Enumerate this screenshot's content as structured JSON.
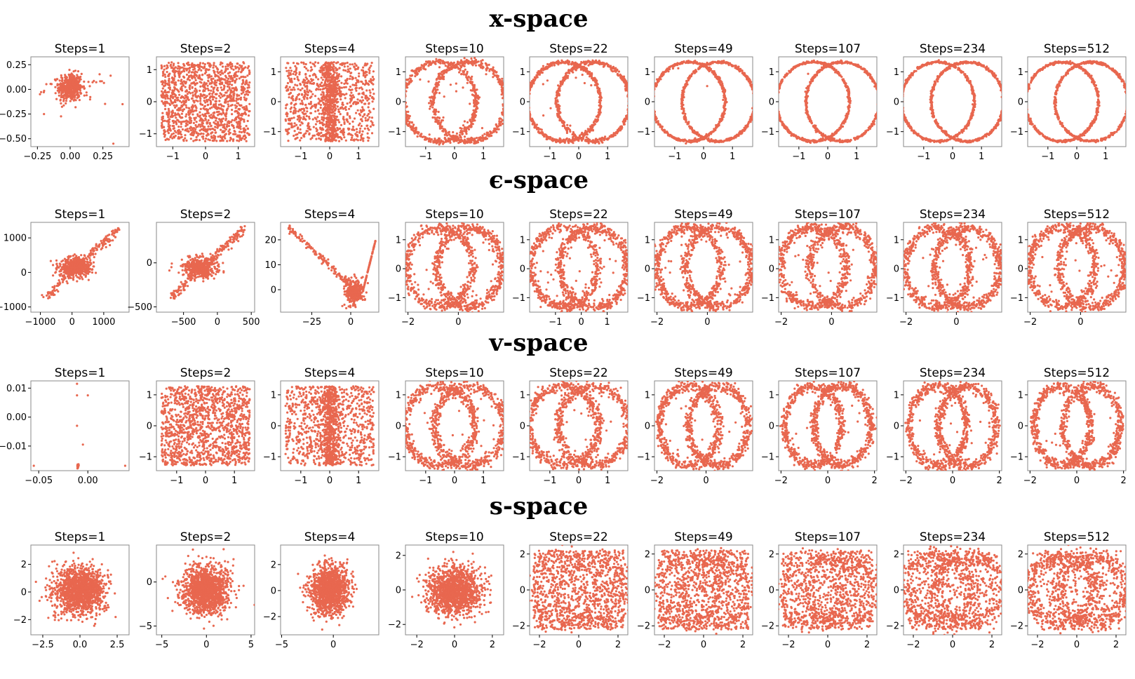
{
  "figure": {
    "point_color": "#e8674f",
    "row_titles": [
      "x-space",
      "ϵ-space",
      "v-space",
      "s-space"
    ]
  },
  "chart_data": [
    {
      "type": "scatter",
      "row": "x-space",
      "title": "Steps=1",
      "shape": "blob",
      "xlim": [
        -0.3,
        0.45
      ],
      "ylim": [
        -0.58,
        0.33
      ],
      "xticks": [
        -0.25,
        0.0,
        0.25
      ],
      "xtick_labels": [
        "−0.25",
        "0.00",
        "0.25"
      ],
      "yticks": [
        0.25,
        0.0,
        -0.25,
        -0.5
      ],
      "ytick_labels": [
        "0.25",
        "0.00",
        "−0.25",
        "−0.50"
      ]
    },
    {
      "type": "scatter",
      "row": "x-space",
      "title": "Steps=2",
      "shape": "noise",
      "xlim": [
        -1.5,
        1.5
      ],
      "ylim": [
        -1.4,
        1.4
      ],
      "xticks": [
        -1,
        0,
        1
      ],
      "xtick_labels": [
        "−1",
        "0",
        "1"
      ],
      "yticks": [
        1,
        0,
        -1
      ],
      "ytick_labels": [
        "1",
        "0",
        "−1"
      ]
    },
    {
      "type": "scatter",
      "row": "x-space",
      "title": "Steps=4",
      "shape": "noise",
      "xlim": [
        -1.7,
        1.7
      ],
      "ylim": [
        -1.5,
        1.5
      ],
      "xticks": [
        -1,
        0,
        1
      ],
      "xtick_labels": [
        "−1",
        "0",
        "1"
      ],
      "yticks": [
        1,
        0,
        -1
      ],
      "ytick_labels": [
        "1",
        "0",
        "−1"
      ]
    },
    {
      "type": "scatter",
      "row": "x-space",
      "title": "Steps=10",
      "shape": "circles",
      "xlim": [
        -1.7,
        1.7
      ],
      "ylim": [
        -1.5,
        1.5
      ],
      "xticks": [
        -1,
        0,
        1
      ],
      "xtick_labels": [
        "−1",
        "0",
        "1"
      ],
      "yticks": [
        1,
        0,
        -1
      ],
      "ytick_labels": [
        "1",
        "0",
        "−1"
      ]
    },
    {
      "type": "scatter",
      "row": "x-space",
      "title": "Steps=22",
      "shape": "circles",
      "xlim": [
        -1.7,
        1.7
      ],
      "ylim": [
        -1.5,
        1.5
      ],
      "xticks": [
        -1,
        0,
        1
      ],
      "xtick_labels": [
        "−1",
        "0",
        "1"
      ],
      "yticks": [
        1,
        0,
        -1
      ],
      "ytick_labels": [
        "1",
        "0",
        "−1"
      ]
    },
    {
      "type": "scatter",
      "row": "x-space",
      "title": "Steps=49",
      "shape": "circles",
      "xlim": [
        -1.7,
        1.7
      ],
      "ylim": [
        -1.5,
        1.5
      ],
      "xticks": [
        -1,
        0,
        1
      ],
      "xtick_labels": [
        "−1",
        "0",
        "1"
      ],
      "yticks": [
        1,
        0,
        -1
      ],
      "ytick_labels": [
        "1",
        "0",
        "−1"
      ]
    },
    {
      "type": "scatter",
      "row": "x-space",
      "title": "Steps=107",
      "shape": "circles",
      "xlim": [
        -1.7,
        1.7
      ],
      "ylim": [
        -1.5,
        1.5
      ],
      "xticks": [
        -1,
        0,
        1
      ],
      "xtick_labels": [
        "−1",
        "0",
        "1"
      ],
      "yticks": [
        1,
        0,
        -1
      ],
      "ytick_labels": [
        "1",
        "0",
        "−1"
      ]
    },
    {
      "type": "scatter",
      "row": "x-space",
      "title": "Steps=234",
      "shape": "circles",
      "xlim": [
        -1.7,
        1.7
      ],
      "ylim": [
        -1.5,
        1.5
      ],
      "xticks": [
        -1,
        0,
        1
      ],
      "xtick_labels": [
        "−1",
        "0",
        "1"
      ],
      "yticks": [
        1,
        0,
        -1
      ],
      "ytick_labels": [
        "1",
        "0",
        "−1"
      ]
    },
    {
      "type": "scatter",
      "row": "x-space",
      "title": "Steps=512",
      "shape": "circles",
      "xlim": [
        -1.7,
        1.7
      ],
      "ylim": [
        -1.5,
        1.5
      ],
      "xticks": [
        -1,
        0,
        1
      ],
      "xtick_labels": [
        "−1",
        "0",
        "1"
      ],
      "yticks": [
        1,
        0,
        -1
      ],
      "ytick_labels": [
        "1",
        "0",
        "−1"
      ]
    },
    {
      "type": "scatter",
      "row": "ϵ-space",
      "title": "Steps=1",
      "shape": "explode",
      "xlim": [
        -1300,
        1800
      ],
      "ylim": [
        -1150,
        1450
      ],
      "xticks": [
        -1000,
        0,
        1000
      ],
      "xtick_labels": [
        "−1000",
        "0",
        "1000"
      ],
      "yticks": [
        1000,
        0,
        -1000
      ],
      "ytick_labels": [
        "1000",
        "0",
        "−1000"
      ]
    },
    {
      "type": "scatter",
      "row": "ϵ-space",
      "title": "Steps=2",
      "shape": "explode",
      "xlim": [
        -900,
        550
      ],
      "ylim": [
        -560,
        460
      ],
      "xticks": [
        -500,
        0,
        500
      ],
      "xtick_labels": [
        "−500",
        "0",
        "500"
      ],
      "yticks": [
        0,
        -500
      ],
      "ytick_labels": [
        "0",
        "−500"
      ]
    },
    {
      "type": "scatter",
      "row": "ϵ-space",
      "title": "Steps=4",
      "shape": "streaks",
      "xlim": [
        -45,
        18
      ],
      "ylim": [
        -9,
        27
      ],
      "xticks": [
        -25,
        0
      ],
      "xtick_labels": [
        "−25",
        "0"
      ],
      "yticks": [
        20,
        10,
        0
      ],
      "ytick_labels": [
        "20",
        "10",
        "0"
      ]
    },
    {
      "type": "scatter",
      "row": "ϵ-space",
      "title": "Steps=10",
      "shape": "circles",
      "xlim": [
        -2.1,
        1.8
      ],
      "ylim": [
        -1.5,
        1.6
      ],
      "xticks": [
        -2,
        0
      ],
      "xtick_labels": [
        "−2",
        "0"
      ],
      "yticks": [
        1,
        0,
        -1
      ],
      "ytick_labels": [
        "1",
        "0",
        "−1"
      ]
    },
    {
      "type": "scatter",
      "row": "ϵ-space",
      "title": "Steps=22",
      "shape": "circles",
      "xlim": [
        -2.0,
        1.8
      ],
      "ylim": [
        -1.5,
        1.6
      ],
      "xticks": [
        -1,
        0,
        1
      ],
      "xtick_labels": [
        "−1",
        "0",
        "1"
      ],
      "yticks": [
        1,
        0,
        -1
      ],
      "ytick_labels": [
        "1",
        "0",
        "−1"
      ]
    },
    {
      "type": "scatter",
      "row": "ϵ-space",
      "title": "Steps=49",
      "shape": "circles",
      "xlim": [
        -2.1,
        1.8
      ],
      "ylim": [
        -1.5,
        1.6
      ],
      "xticks": [
        -2,
        0
      ],
      "xtick_labels": [
        "−2",
        "0"
      ],
      "yticks": [
        1,
        0,
        -1
      ],
      "ytick_labels": [
        "1",
        "0",
        "−1"
      ]
    },
    {
      "type": "scatter",
      "row": "ϵ-space",
      "title": "Steps=107",
      "shape": "circles",
      "xlim": [
        -2.1,
        1.8
      ],
      "ylim": [
        -1.5,
        1.6
      ],
      "xticks": [
        -2,
        0
      ],
      "xtick_labels": [
        "−2",
        "0"
      ],
      "yticks": [
        1,
        0,
        -1
      ],
      "ytick_labels": [
        "1",
        "0",
        "−1"
      ]
    },
    {
      "type": "scatter",
      "row": "ϵ-space",
      "title": "Steps=234",
      "shape": "circles",
      "xlim": [
        -2.1,
        1.8
      ],
      "ylim": [
        -1.5,
        1.6
      ],
      "xticks": [
        -2,
        0
      ],
      "xtick_labels": [
        "−2",
        "0"
      ],
      "yticks": [
        1,
        0,
        -1
      ],
      "ytick_labels": [
        "1",
        "0",
        "−1"
      ]
    },
    {
      "type": "scatter",
      "row": "ϵ-space",
      "title": "Steps=512",
      "shape": "circles",
      "xlim": [
        -2.1,
        1.8
      ],
      "ylim": [
        -1.5,
        1.6
      ],
      "xticks": [
        -2,
        0
      ],
      "xtick_labels": [
        "−2",
        "0"
      ],
      "yticks": [
        1,
        0,
        -1
      ],
      "ytick_labels": [
        "1",
        "0",
        "−1"
      ]
    },
    {
      "type": "scatter",
      "row": "v-space",
      "title": "Steps=1",
      "shape": "sparse",
      "xlim": [
        -0.058,
        0.042
      ],
      "ylim": [
        -0.0185,
        0.0125
      ],
      "xticks": [
        -0.05,
        0.0
      ],
      "xtick_labels": [
        "−0.05",
        "0.00"
      ],
      "yticks": [
        0.01,
        0.0,
        -0.01
      ],
      "ytick_labels": [
        "0.01",
        "0.00",
        "−0.01"
      ]
    },
    {
      "type": "scatter",
      "row": "v-space",
      "title": "Steps=2",
      "shape": "noise",
      "xlim": [
        -1.7,
        1.7
      ],
      "ylim": [
        -1.45,
        1.45
      ],
      "xticks": [
        -1,
        0,
        1
      ],
      "xtick_labels": [
        "−1",
        "0",
        "1"
      ],
      "yticks": [
        1,
        0,
        -1
      ],
      "ytick_labels": [
        "1",
        "0",
        "−1"
      ]
    },
    {
      "type": "scatter",
      "row": "v-space",
      "title": "Steps=4",
      "shape": "noise",
      "xlim": [
        -1.7,
        1.7
      ],
      "ylim": [
        -1.45,
        1.45
      ],
      "xticks": [
        -1,
        0,
        1
      ],
      "xtick_labels": [
        "−1",
        "0",
        "1"
      ],
      "yticks": [
        1,
        0,
        -1
      ],
      "ytick_labels": [
        "1",
        "0",
        "−1"
      ]
    },
    {
      "type": "scatter",
      "row": "v-space",
      "title": "Steps=10",
      "shape": "circles",
      "xlim": [
        -1.7,
        1.7
      ],
      "ylim": [
        -1.45,
        1.45
      ],
      "xticks": [
        -1,
        0,
        1
      ],
      "xtick_labels": [
        "−1",
        "0",
        "1"
      ],
      "yticks": [
        1,
        0,
        -1
      ],
      "ytick_labels": [
        "1",
        "0",
        "−1"
      ]
    },
    {
      "type": "scatter",
      "row": "v-space",
      "title": "Steps=22",
      "shape": "circles",
      "xlim": [
        -1.7,
        1.7
      ],
      "ylim": [
        -1.45,
        1.45
      ],
      "xticks": [
        -1,
        0,
        1
      ],
      "xtick_labels": [
        "−1",
        "0",
        "1"
      ],
      "yticks": [
        1,
        0,
        -1
      ],
      "ytick_labels": [
        "1",
        "0",
        "−1"
      ]
    },
    {
      "type": "scatter",
      "row": "v-space",
      "title": "Steps=49",
      "shape": "circles",
      "xlim": [
        -2.1,
        1.9
      ],
      "ylim": [
        -1.45,
        1.45
      ],
      "xticks": [
        -2,
        0
      ],
      "xtick_labels": [
        "−2",
        "0"
      ],
      "yticks": [
        1,
        0,
        -1
      ],
      "ytick_labels": [
        "1",
        "0",
        "−1"
      ]
    },
    {
      "type": "scatter",
      "row": "v-space",
      "title": "Steps=107",
      "shape": "circles",
      "xlim": [
        -2.1,
        2.1
      ],
      "ylim": [
        -1.45,
        1.45
      ],
      "xticks": [
        -2,
        0,
        2
      ],
      "xtick_labels": [
        "−2",
        "0",
        "2"
      ],
      "yticks": [
        1,
        0,
        -1
      ],
      "ytick_labels": [
        "1",
        "0",
        "−1"
      ]
    },
    {
      "type": "scatter",
      "row": "v-space",
      "title": "Steps=234",
      "shape": "circles",
      "xlim": [
        -2.1,
        2.1
      ],
      "ylim": [
        -1.45,
        1.45
      ],
      "xticks": [
        -2,
        0,
        2
      ],
      "xtick_labels": [
        "−2",
        "0",
        "2"
      ],
      "yticks": [
        1,
        0,
        -1
      ],
      "ytick_labels": [
        "1",
        "0",
        "−1"
      ]
    },
    {
      "type": "scatter",
      "row": "v-space",
      "title": "Steps=512",
      "shape": "circles",
      "xlim": [
        -2.1,
        2.1
      ],
      "ylim": [
        -1.45,
        1.45
      ],
      "xticks": [
        -2,
        0,
        2
      ],
      "xtick_labels": [
        "−2",
        "0",
        "2"
      ],
      "yticks": [
        1,
        0,
        -1
      ],
      "ytick_labels": [
        "1",
        "0",
        "−1"
      ]
    },
    {
      "type": "scatter",
      "row": "s-space",
      "title": "Steps=1",
      "shape": "gauss",
      "xlim": [
        -3.3,
        3.3
      ],
      "ylim": [
        -3.1,
        3.4
      ],
      "xticks": [
        -2.5,
        0.0,
        2.5
      ],
      "xtick_labels": [
        "−2.5",
        "0.0",
        "2.5"
      ],
      "yticks": [
        2,
        0,
        -2
      ],
      "ytick_labels": [
        "2",
        "0",
        "−2"
      ]
    },
    {
      "type": "scatter",
      "row": "s-space",
      "title": "Steps=2",
      "shape": "gauss",
      "xlim": [
        -5.6,
        5.4
      ],
      "ylim": [
        -6.0,
        4.2
      ],
      "xticks": [
        -5,
        0,
        5
      ],
      "xtick_labels": [
        "−5",
        "0",
        "5"
      ],
      "yticks": [
        0,
        -5
      ],
      "ytick_labels": [
        "0",
        "−5"
      ]
    },
    {
      "type": "scatter",
      "row": "s-space",
      "title": "Steps=4",
      "shape": "gauss",
      "xlim": [
        -5.1,
        4.4
      ],
      "ylim": [
        -3.4,
        3.5
      ],
      "xticks": [
        -5,
        0
      ],
      "xtick_labels": [
        "−5",
        "0"
      ],
      "yticks": [
        2,
        0,
        -2
      ],
      "ytick_labels": [
        "2",
        "0",
        "−2"
      ]
    },
    {
      "type": "scatter",
      "row": "s-space",
      "title": "Steps=10",
      "shape": "gauss",
      "xlim": [
        -2.6,
        2.6
      ],
      "ylim": [
        -2.6,
        2.6
      ],
      "xticks": [
        -2,
        0,
        2
      ],
      "xtick_labels": [
        "−2",
        "0",
        "2"
      ],
      "yticks": [
        2,
        0,
        -2
      ],
      "ytick_labels": [
        "2",
        "0",
        "−2"
      ]
    },
    {
      "type": "scatter",
      "row": "s-space",
      "title": "Steps=22",
      "shape": "fuzzy",
      "xlim": [
        -2.5,
        2.5
      ],
      "ylim": [
        -2.5,
        2.5
      ],
      "xticks": [
        -2,
        0,
        2
      ],
      "xtick_labels": [
        "−2",
        "0",
        "2"
      ],
      "yticks": [
        2,
        0,
        -2
      ],
      "ytick_labels": [
        "2",
        "0",
        "−2"
      ]
    },
    {
      "type": "scatter",
      "row": "s-space",
      "title": "Steps=49",
      "shape": "fuzzy",
      "xlim": [
        -2.5,
        2.5
      ],
      "ylim": [
        -2.5,
        2.5
      ],
      "xticks": [
        -2,
        0,
        2
      ],
      "xtick_labels": [
        "−2",
        "0",
        "2"
      ],
      "yticks": [
        2,
        0,
        -2
      ],
      "ytick_labels": [
        "2",
        "0",
        "−2"
      ]
    },
    {
      "type": "scatter",
      "row": "s-space",
      "title": "Steps=107",
      "shape": "fuzzy",
      "xlim": [
        -2.5,
        2.5
      ],
      "ylim": [
        -2.5,
        2.5
      ],
      "xticks": [
        -2,
        0,
        2
      ],
      "xtick_labels": [
        "−2",
        "0",
        "2"
      ],
      "yticks": [
        2,
        0,
        -2
      ],
      "ytick_labels": [
        "2",
        "0",
        "−2"
      ]
    },
    {
      "type": "scatter",
      "row": "s-space",
      "title": "Steps=234",
      "shape": "fuzzy",
      "xlim": [
        -2.5,
        2.5
      ],
      "ylim": [
        -2.5,
        2.5
      ],
      "xticks": [
        -2,
        0,
        2
      ],
      "xtick_labels": [
        "−2",
        "0",
        "2"
      ],
      "yticks": [
        2,
        0,
        -2
      ],
      "ytick_labels": [
        "2",
        "0",
        "−2"
      ]
    },
    {
      "type": "scatter",
      "row": "s-space",
      "title": "Steps=512",
      "shape": "fuzzy",
      "xlim": [
        -2.5,
        2.5
      ],
      "ylim": [
        -2.5,
        2.5
      ],
      "xticks": [
        -2,
        0,
        2
      ],
      "xtick_labels": [
        "−2",
        "0",
        "2"
      ],
      "yticks": [
        2,
        0,
        -2
      ],
      "ytick_labels": [
        "2",
        "0",
        "−2"
      ]
    }
  ]
}
